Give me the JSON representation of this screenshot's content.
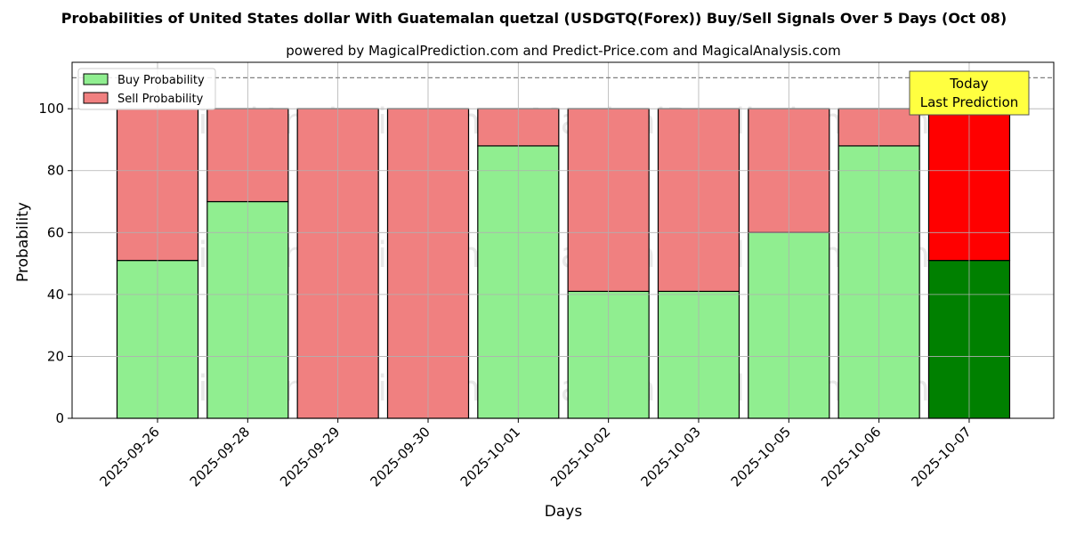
{
  "chart_data": {
    "type": "bar",
    "stacked": true,
    "title": "Probabilities of United States dollar With Guatemalan quetzal (USDGTQ(Forex)) Buy/Sell Signals Over 5 Days (Oct 08)",
    "subtitle": "powered by MagicalPrediction.com and Predict-Price.com and MagicalAnalysis.com",
    "xlabel": "Days",
    "ylabel": "Probability",
    "ylim": [
      0,
      115
    ],
    "yticks": [
      0,
      20,
      40,
      60,
      80,
      100
    ],
    "reference_line": 110,
    "grid": true,
    "legend_position": "top-left",
    "categories": [
      "2025-09-26",
      "2025-09-28",
      "2025-09-29",
      "2025-09-30",
      "2025-10-01",
      "2025-10-02",
      "2025-10-03",
      "2025-10-05",
      "2025-10-06",
      "2025-10-07"
    ],
    "series": [
      {
        "name": "Buy Probability",
        "color": "#90ee90",
        "values": [
          51,
          70,
          0,
          0,
          88,
          41,
          41,
          60,
          88,
          51
        ]
      },
      {
        "name": "Sell Probability",
        "color": "#f08080",
        "values": [
          49,
          30,
          100,
          100,
          12,
          59,
          59,
          40,
          12,
          49
        ]
      }
    ],
    "highlight": {
      "index": 9,
      "buy_color": "#008000",
      "sell_color": "#ff0000"
    },
    "annotation": {
      "lines": [
        "Today",
        "Last Prediction"
      ],
      "color": "#ffff40"
    },
    "watermarks": [
      "MagicalAnalysis.com",
      "MagicalPrediction.com",
      "MagicalAnalysis.com",
      "MagicalPrediction.com",
      "MagicalAnalysis.com",
      "MagicalPrediction.com"
    ]
  }
}
